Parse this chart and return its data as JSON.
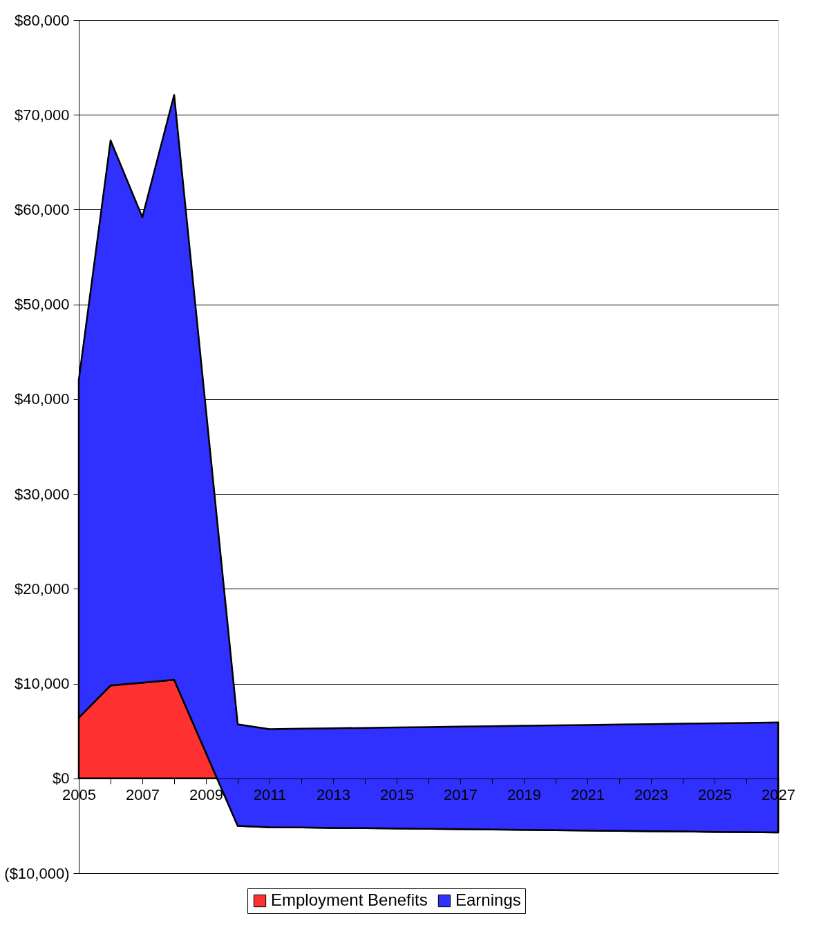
{
  "chart_data": {
    "type": "area",
    "stacked": true,
    "x": [
      2005,
      2006,
      2007,
      2008,
      2009,
      2010,
      2011,
      2012,
      2013,
      2014,
      2015,
      2016,
      2017,
      2018,
      2019,
      2020,
      2021,
      2022,
      2023,
      2024,
      2025,
      2026,
      2027
    ],
    "series": [
      {
        "name": "Employment Benefits",
        "color": "#ff3030",
        "values": [
          6400,
          9800,
          10100,
          10400,
          2700,
          -5000,
          -5150,
          -5180,
          -5220,
          -5250,
          -5290,
          -5320,
          -5360,
          -5390,
          -5430,
          -5460,
          -5500,
          -5530,
          -5570,
          -5600,
          -5640,
          -5670,
          -5700
        ]
      },
      {
        "name": "Earnings",
        "color": "#3030ff",
        "values": [
          35600,
          57500,
          49100,
          61700,
          36200,
          10700,
          10350,
          10420,
          10510,
          10580,
          10670,
          10740,
          10820,
          10900,
          10980,
          11050,
          11140,
          11210,
          11290,
          11370,
          11450,
          11520,
          11600
        ]
      }
    ],
    "xlim": [
      2005,
      2027
    ],
    "xticks": [
      2005,
      {
        "value": 2006,
        "label": null
      },
      2007,
      {
        "value": 2008,
        "label": null
      },
      2009,
      {
        "value": 2010,
        "label": null
      },
      2011,
      {
        "value": 2012,
        "label": null
      },
      2013,
      {
        "value": 2014,
        "label": null
      },
      2015,
      {
        "value": 2016,
        "label": null
      },
      2017,
      {
        "value": 2018,
        "label": null
      },
      2019,
      {
        "value": 2020,
        "label": null
      },
      2021,
      {
        "value": 2022,
        "label": null
      },
      2023,
      {
        "value": 2024,
        "label": null
      },
      2025,
      {
        "value": 2026,
        "label": null
      },
      2027
    ],
    "ylim": [
      -10000,
      80000
    ],
    "yticks": [
      {
        "value": -10000,
        "label": "($10,000)"
      },
      {
        "value": 0,
        "label": "$0"
      },
      {
        "value": 10000,
        "label": "$10,000"
      },
      {
        "value": 20000,
        "label": "$20,000"
      },
      {
        "value": 30000,
        "label": "$30,000"
      },
      {
        "value": 40000,
        "label": "$40,000"
      },
      {
        "value": 50000,
        "label": "$50,000"
      },
      {
        "value": 60000,
        "label": "$60,000"
      },
      {
        "value": 70000,
        "label": "$70,000"
      },
      {
        "value": 80000,
        "label": "$80,000"
      }
    ],
    "grid": "y",
    "legend": "bottom"
  }
}
